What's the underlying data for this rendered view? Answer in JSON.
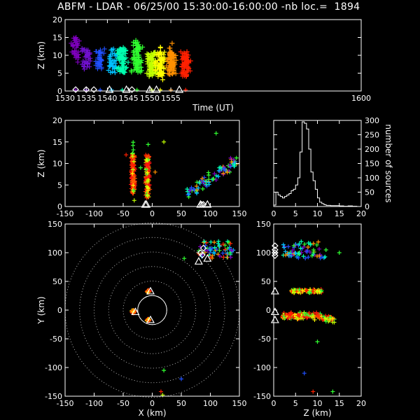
{
  "title": "ABFM - LDAR - 06/25/00 15:30:00-16:00:00 -nb loc.=  1894",
  "chart_data": [
    {
      "panel": "time-height",
      "type": "scatter",
      "xlabel": "Time (UT)",
      "ylabel": "Z (km)",
      "xlim": [
        1530,
        1600
      ],
      "ylim": [
        0,
        20
      ],
      "xticks": [
        "1530",
        "1535",
        "1540",
        "1545",
        "1550",
        "1555",
        "1600"
      ],
      "yticks": [
        "0",
        "5",
        "10",
        "15",
        "20"
      ],
      "color_scale": "time (violet to red)",
      "clusters": [
        {
          "t": 1532.5,
          "z": [
            8,
            15
          ],
          "color": "#8000c0"
        },
        {
          "t": 1535.0,
          "z": [
            6,
            12
          ],
          "color": "#7010d0"
        },
        {
          "t": 1538.3,
          "z": [
            6,
            12
          ],
          "color": "#2050ff"
        },
        {
          "t": 1541.0,
          "z": [
            5,
            12
          ],
          "color": "#00c0ff"
        },
        {
          "t": 1543.5,
          "z": [
            5,
            12
          ],
          "color": "#00ffb0"
        },
        {
          "t": 1547.0,
          "z": [
            5,
            14
          ],
          "color": "#30ff30"
        },
        {
          "t": 1550.5,
          "z": [
            4,
            11
          ],
          "color": "#c0ff00"
        },
        {
          "t": 1552.5,
          "z": [
            4,
            11
          ],
          "color": "#ffff00"
        },
        {
          "t": 1555.0,
          "z": [
            4,
            11
          ],
          "color": "#ff9000"
        },
        {
          "t": 1558.5,
          "z": [
            4,
            11
          ],
          "color": "#ff2000"
        }
      ]
    },
    {
      "panel": "x-height",
      "type": "scatter",
      "xlabel": "",
      "ylabel": "Z (km)",
      "xlim": [
        -150,
        150
      ],
      "ylim": [
        0,
        20
      ],
      "xticks": [
        "-150",
        "-100",
        "-50",
        "0",
        "50",
        "100",
        "150"
      ],
      "yticks": [
        "0",
        "5",
        "10",
        "15",
        "20"
      ]
    },
    {
      "panel": "altitude-histogram",
      "type": "line",
      "xlabel": "",
      "ylabel": "number of sources",
      "xlim": [
        0,
        20
      ],
      "ylim": [
        0,
        300
      ],
      "xticks": [
        "0",
        "5",
        "10",
        "15",
        "20"
      ],
      "yticks": [
        "0",
        "50",
        "100",
        "150",
        "200",
        "250",
        "300"
      ],
      "x": [
        0,
        0.5,
        1,
        1.5,
        2,
        2.5,
        3,
        3.5,
        4,
        4.5,
        5,
        5.5,
        6,
        6.5,
        7,
        7.5,
        8,
        8.5,
        9,
        9.5,
        10,
        10.5,
        11,
        11.5,
        12,
        12.5,
        13,
        14,
        15,
        16,
        17,
        18,
        19,
        20
      ],
      "y": [
        5,
        50,
        40,
        35,
        30,
        35,
        40,
        45,
        55,
        60,
        75,
        100,
        190,
        295,
        290,
        270,
        200,
        120,
        90,
        60,
        30,
        15,
        10,
        6,
        4,
        4,
        3,
        3,
        2,
        1,
        2,
        1,
        0,
        0
      ]
    },
    {
      "panel": "plan-view",
      "type": "scatter",
      "xlabel": "X (km)",
      "ylabel": "Y (km)",
      "xlim": [
        -150,
        150
      ],
      "ylim": [
        -150,
        150
      ],
      "xticks": [
        "-150",
        "-100",
        "-50",
        "0",
        "50",
        "100",
        "150"
      ],
      "yticks": [
        "-150",
        "-100",
        "-50",
        "0",
        "50",
        "100",
        "150"
      ],
      "range_rings_km": [
        25,
        50,
        75,
        100,
        125,
        150
      ]
    },
    {
      "panel": "height-y",
      "type": "scatter",
      "xlabel": "Z (km)",
      "ylabel": "",
      "xlim": [
        0,
        20
      ],
      "ylim": [
        -150,
        150
      ],
      "xticks": [
        "0",
        "5",
        "10",
        "15",
        "20"
      ],
      "yticks": [
        "-150",
        "-100",
        "-50",
        "0",
        "50",
        "100",
        "150"
      ]
    }
  ],
  "colors": {
    "background": "#000000",
    "axes": "#ffffff",
    "rings": "#c8c8c8"
  }
}
